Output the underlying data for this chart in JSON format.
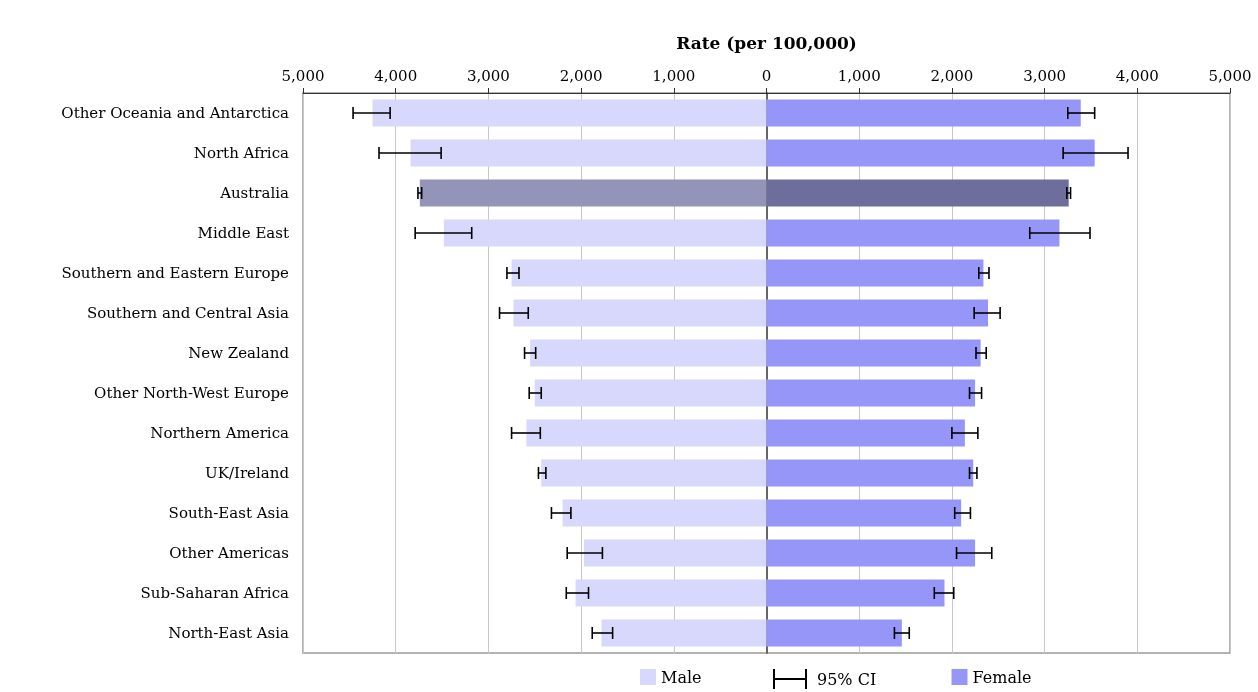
{
  "chart_data": {
    "type": "bar",
    "orientation": "horizontal",
    "stacked": true,
    "xlabel": "Rate (per 100,000)",
    "categories": [
      "Other Oceania and Antarctica",
      "North Africa",
      "Australia",
      "Middle East",
      "Southern and Eastern Europe",
      "Southern and Central Asia",
      "New Zealand",
      "Other North-West Europe",
      "Northern America",
      "UK/Ireland",
      "South-East Asia",
      "Other Americas",
      "Sub-Saharan Africa",
      "North-East Asia"
    ],
    "series": [
      {
        "name": "Male",
        "color": "#d8d8fc",
        "colors": [
          "#d8d8fc",
          "#d8d8fc",
          "#9494b8",
          "#d8d8fc",
          "#d8d8fc",
          "#d8d8fc",
          "#d8d8fc",
          "#d8d8fc",
          "#d8d8fc",
          "#d8d8fc",
          "#d8d8fc",
          "#d8d8fc",
          "#d8d8fc",
          "#d8d8fc"
        ],
        "values": [
          -4250,
          -3840,
          -3740,
          -3480,
          -2750,
          -2730,
          -2550,
          -2500,
          -2590,
          -2430,
          -2200,
          -1970,
          -2060,
          -1780
        ],
        "errors": [
          [
            -4460,
            -4060
          ],
          [
            -4180,
            -3510
          ],
          [
            -3760,
            -3720
          ],
          [
            -3790,
            -3180
          ],
          [
            -2800,
            -2670
          ],
          [
            -2880,
            -2570
          ],
          [
            -2610,
            -2490
          ],
          [
            -2560,
            -2430
          ],
          [
            -2750,
            -2440
          ],
          [
            -2460,
            -2380
          ],
          [
            -2320,
            -2110
          ],
          [
            -2150,
            -1770
          ],
          [
            -2160,
            -1920
          ],
          [
            -1880,
            -1660
          ]
        ]
      },
      {
        "name": "Female",
        "color": "#9696f8",
        "colors": [
          "#9696f8",
          "#9696f8",
          "#6e6e9c",
          "#9696f8",
          "#9696f8",
          "#9696f8",
          "#9696f8",
          "#9696f8",
          "#9696f8",
          "#9696f8",
          "#9696f8",
          "#9696f8",
          "#9696f8",
          "#9696f8"
        ],
        "values": [
          3390,
          3540,
          3260,
          3160,
          2340,
          2390,
          2310,
          2250,
          2140,
          2230,
          2100,
          2250,
          1920,
          1460
        ],
        "errors": [
          [
            3250,
            3540
          ],
          [
            3200,
            3900
          ],
          [
            3240,
            3280
          ],
          [
            2840,
            3490
          ],
          [
            2290,
            2400
          ],
          [
            2240,
            2520
          ],
          [
            2260,
            2370
          ],
          [
            2190,
            2320
          ],
          [
            2000,
            2280
          ],
          [
            2190,
            2270
          ],
          [
            2030,
            2200
          ],
          [
            2050,
            2430
          ],
          [
            1810,
            2020
          ],
          [
            1380,
            1540
          ]
        ]
      }
    ],
    "annotations": [
      "95% CI"
    ],
    "xlim": [
      -5000,
      5000
    ],
    "xticks": [
      {
        "value": -5000,
        "label": "5,000"
      },
      {
        "value": -4000,
        "label": "4,000"
      },
      {
        "value": -3000,
        "label": "3,000"
      },
      {
        "value": -2000,
        "label": "2,000"
      },
      {
        "value": -1000,
        "label": "1,000"
      },
      0,
      {
        "value": 1000,
        "label": "1,000"
      },
      {
        "value": 2000,
        "label": "2,000"
      },
      {
        "value": 3000,
        "label": "3,000"
      },
      {
        "value": 4000,
        "label": "4,000"
      },
      {
        "value": 5000,
        "label": "5,000"
      }
    ],
    "grid": "x",
    "legend": "bottom"
  }
}
